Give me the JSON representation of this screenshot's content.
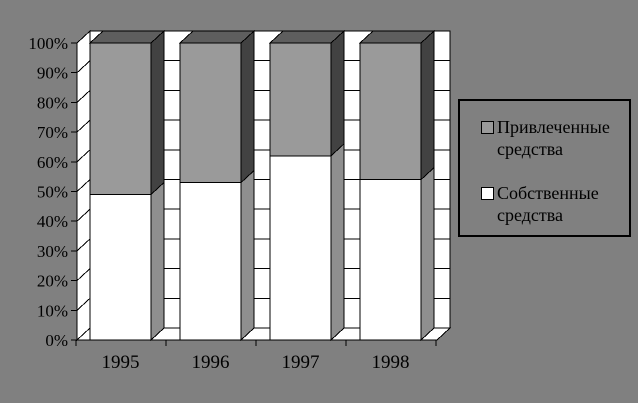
{
  "chart_data": {
    "type": "bar",
    "subtype": "100%-stacked-column-3d",
    "title": "",
    "xlabel": "",
    "ylabel": "",
    "categories": [
      "1995",
      "1996",
      "1997",
      "1998"
    ],
    "series": [
      {
        "name": "Собственные средства",
        "values": [
          49,
          53,
          62,
          54
        ]
      },
      {
        "name": "Привлеченные средства",
        "values": [
          51,
          47,
          38,
          46
        ]
      }
    ],
    "ylim": [
      0,
      100
    ],
    "yticks": [
      "0%",
      "10%",
      "20%",
      "30%",
      "40%",
      "50%",
      "60%",
      "70%",
      "80%",
      "90%",
      "100%"
    ],
    "grid": true,
    "legend_position": "right"
  },
  "legend": {
    "items": [
      {
        "label": "Привлеченные средства",
        "swatch": "#9A9A9A"
      },
      {
        "label": "Собственные средства",
        "swatch": "#FFFFFF"
      }
    ]
  },
  "colors": {
    "background": "#808080",
    "plot_wall": "#FFFFFF",
    "outline": "#000000",
    "own_front": "#FFFFFF",
    "own_side": "#8F8F8F",
    "attracted_front": "#9A9A9A",
    "attracted_side": "#424242",
    "attracted_top": "#5E5E5E"
  }
}
